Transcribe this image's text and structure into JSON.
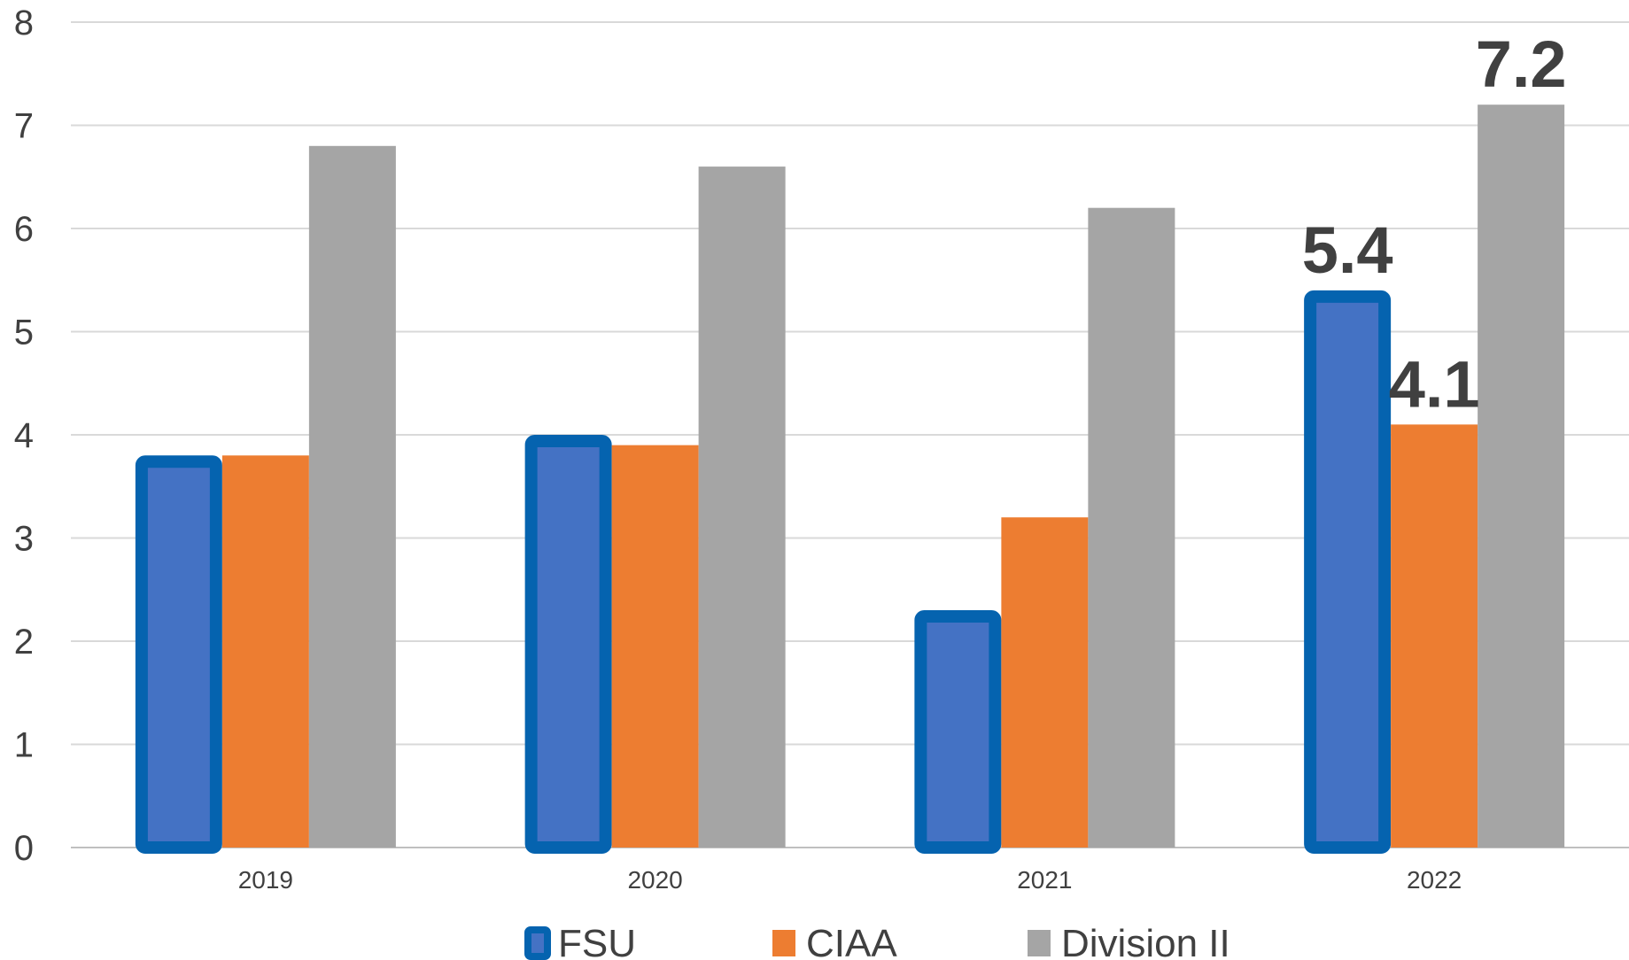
{
  "chart_data": {
    "type": "bar",
    "categories": [
      "2019",
      "2020",
      "2021",
      "2022"
    ],
    "series": [
      {
        "name": "FSU",
        "values": [
          3.8,
          4.0,
          2.3,
          5.4
        ],
        "color": "#4472C4",
        "border_color": "#0563AF",
        "labels": [
          "",
          "",
          "",
          "5.4"
        ]
      },
      {
        "name": "CIAA",
        "values": [
          3.8,
          3.9,
          3.2,
          4.1
        ],
        "color": "#ED7D31",
        "labels": [
          "",
          "",
          "",
          "4.1"
        ]
      },
      {
        "name": "Division II",
        "values": [
          6.8,
          6.6,
          6.2,
          7.2
        ],
        "color": "#A5A5A5",
        "labels": [
          "",
          "",
          "",
          "7.2"
        ]
      }
    ],
    "yticks": [
      "0",
      "1",
      "2",
      "3",
      "4",
      "5",
      "6",
      "7",
      "8"
    ],
    "ylim": [
      0,
      8
    ],
    "grid": true,
    "legend": "bottom"
  }
}
